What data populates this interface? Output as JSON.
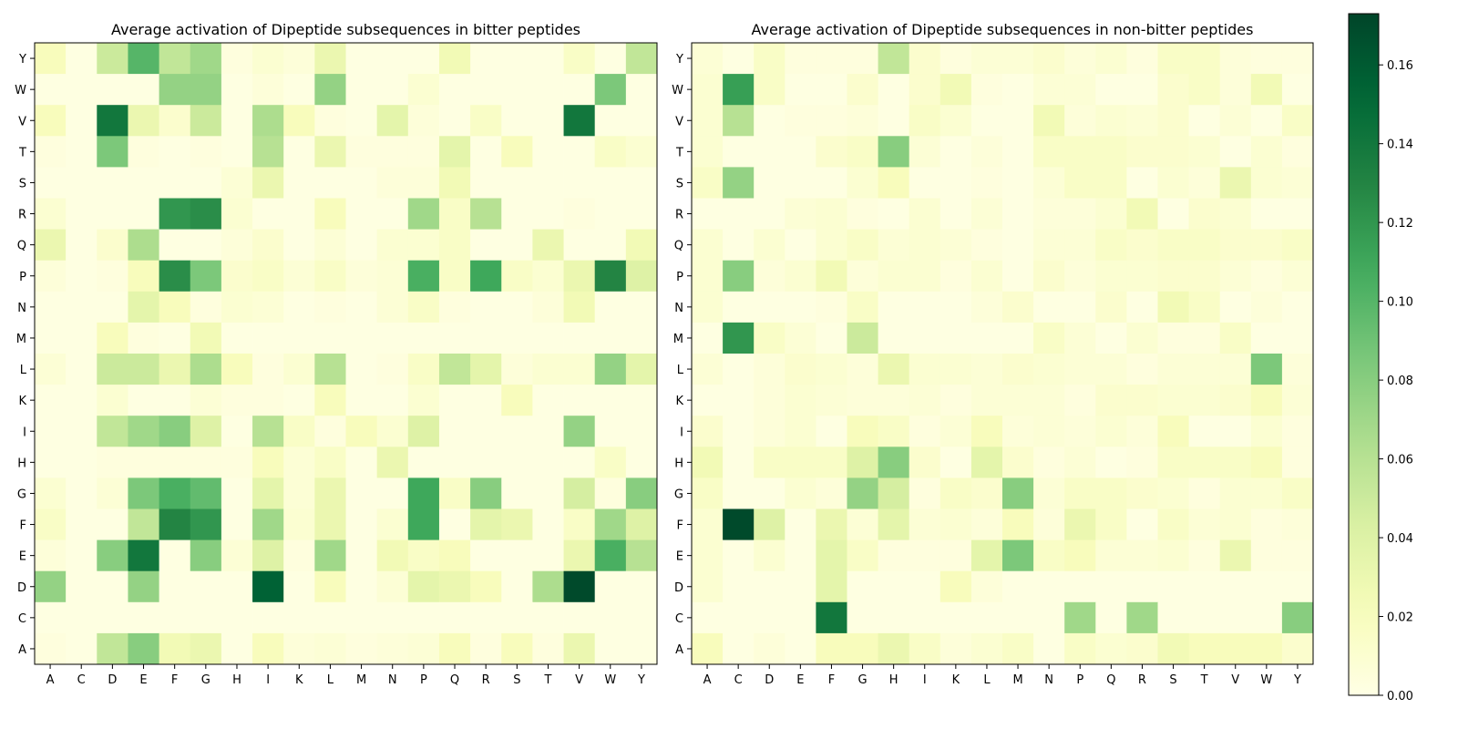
{
  "chart_data": [
    {
      "type": "heatmap",
      "title": "Average activation of Dipeptide subsequences in bitter peptides",
      "x_categories": [
        "A",
        "C",
        "D",
        "E",
        "F",
        "G",
        "H",
        "I",
        "K",
        "L",
        "M",
        "N",
        "P",
        "Q",
        "R",
        "S",
        "T",
        "V",
        "W",
        "Y"
      ],
      "y_categories": [
        "Y",
        "W",
        "V",
        "T",
        "S",
        "R",
        "Q",
        "P",
        "N",
        "M",
        "L",
        "K",
        "I",
        "H",
        "G",
        "F",
        "E",
        "D",
        "C",
        "A"
      ],
      "values": [
        [
          0.02,
          0.002,
          0.05,
          0.1,
          0.055,
          0.07,
          0.004,
          0.01,
          0.006,
          0.03,
          0.002,
          0.002,
          0.002,
          0.025,
          0.002,
          0.002,
          0.002,
          0.015,
          0.002,
          0.055
        ],
        [
          0.002,
          0.002,
          0.002,
          0.002,
          0.075,
          0.075,
          0.002,
          0.006,
          0.002,
          0.075,
          0.002,
          0.002,
          0.01,
          0.002,
          0.002,
          0.002,
          0.002,
          0.002,
          0.085,
          0.002
        ],
        [
          0.02,
          0.002,
          0.14,
          0.03,
          0.012,
          0.05,
          0.002,
          0.065,
          0.02,
          0.004,
          0.002,
          0.035,
          0.006,
          0.002,
          0.015,
          0.002,
          0.002,
          0.14,
          0.002,
          0.002
        ],
        [
          0.004,
          0.002,
          0.085,
          0.004,
          0.002,
          0.004,
          0.002,
          0.06,
          0.002,
          0.03,
          0.004,
          0.004,
          0.004,
          0.035,
          0.002,
          0.02,
          0.002,
          0.002,
          0.015,
          0.01
        ],
        [
          0.002,
          0.002,
          0.002,
          0.002,
          0.002,
          0.002,
          0.008,
          0.03,
          0.002,
          0.002,
          0.002,
          0.006,
          0.006,
          0.025,
          0.002,
          0.002,
          0.002,
          0.002,
          0.002,
          0.002
        ],
        [
          0.01,
          0.002,
          0.002,
          0.002,
          0.12,
          0.125,
          0.01,
          0.002,
          0.002,
          0.02,
          0.002,
          0.002,
          0.07,
          0.015,
          0.06,
          0.002,
          0.002,
          0.004,
          0.002,
          0.002
        ],
        [
          0.03,
          0.002,
          0.012,
          0.065,
          0.002,
          0.002,
          0.006,
          0.012,
          0.002,
          0.008,
          0.002,
          0.01,
          0.01,
          0.015,
          0.002,
          0.002,
          0.03,
          0.002,
          0.002,
          0.025
        ],
        [
          0.006,
          0.002,
          0.004,
          0.02,
          0.125,
          0.085,
          0.012,
          0.015,
          0.008,
          0.015,
          0.006,
          0.008,
          0.105,
          0.015,
          0.11,
          0.015,
          0.01,
          0.03,
          0.13,
          0.04
        ],
        [
          0.002,
          0.002,
          0.002,
          0.035,
          0.02,
          0.004,
          0.01,
          0.008,
          0.002,
          0.004,
          0.002,
          0.008,
          0.015,
          0.004,
          0.002,
          0.002,
          0.006,
          0.025,
          0.002,
          0.002
        ],
        [
          0.002,
          0.002,
          0.02,
          0.004,
          0.002,
          0.025,
          0.002,
          0.002,
          0.002,
          0.002,
          0.002,
          0.002,
          0.002,
          0.002,
          0.002,
          0.002,
          0.002,
          0.002,
          0.002,
          0.002
        ],
        [
          0.008,
          0.002,
          0.05,
          0.05,
          0.03,
          0.065,
          0.02,
          0.004,
          0.01,
          0.06,
          0.002,
          0.004,
          0.015,
          0.055,
          0.035,
          0.006,
          0.01,
          0.01,
          0.075,
          0.035
        ],
        [
          0.002,
          0.002,
          0.01,
          0.002,
          0.002,
          0.008,
          0.004,
          0.004,
          0.002,
          0.02,
          0.002,
          0.002,
          0.01,
          0.002,
          0.002,
          0.02,
          0.002,
          0.002,
          0.002,
          0.002
        ],
        [
          0.002,
          0.002,
          0.055,
          0.07,
          0.08,
          0.04,
          0.002,
          0.06,
          0.015,
          0.004,
          0.02,
          0.01,
          0.04,
          0.002,
          0.002,
          0.002,
          0.002,
          0.075,
          0.002,
          0.002
        ],
        [
          0.002,
          0.002,
          0.004,
          0.004,
          0.004,
          0.004,
          0.004,
          0.02,
          0.008,
          0.015,
          0.002,
          0.03,
          0.002,
          0.002,
          0.002,
          0.002,
          0.002,
          0.002,
          0.015,
          0.002
        ],
        [
          0.01,
          0.002,
          0.008,
          0.085,
          0.105,
          0.095,
          0.002,
          0.035,
          0.008,
          0.03,
          0.002,
          0.002,
          0.11,
          0.015,
          0.08,
          0.002,
          0.002,
          0.045,
          0.004,
          0.08
        ],
        [
          0.015,
          0.002,
          0.002,
          0.055,
          0.13,
          0.12,
          0.002,
          0.07,
          0.01,
          0.03,
          0.002,
          0.01,
          0.11,
          0.002,
          0.035,
          0.03,
          0.002,
          0.015,
          0.07,
          0.04
        ],
        [
          0.006,
          0.002,
          0.08,
          0.14,
          0.002,
          0.08,
          0.008,
          0.04,
          0.004,
          0.07,
          0.002,
          0.025,
          0.015,
          0.02,
          0.002,
          0.002,
          0.002,
          0.03,
          0.105,
          0.06
        ],
        [
          0.075,
          0.002,
          0.002,
          0.075,
          0.002,
          0.002,
          0.002,
          0.155,
          0.002,
          0.02,
          0.002,
          0.008,
          0.035,
          0.03,
          0.02,
          0.002,
          0.065,
          0.17,
          0.002,
          0.002
        ],
        [
          0.002,
          0.002,
          0.002,
          0.002,
          0.002,
          0.002,
          0.002,
          0.002,
          0.002,
          0.002,
          0.002,
          0.002,
          0.002,
          0.002,
          0.002,
          0.002,
          0.002,
          0.002,
          0.002,
          0.002
        ],
        [
          0.004,
          0.002,
          0.055,
          0.08,
          0.025,
          0.03,
          0.002,
          0.02,
          0.006,
          0.008,
          0.004,
          0.006,
          0.008,
          0.02,
          0.004,
          0.02,
          0.004,
          0.03,
          0.002,
          0.002
        ]
      ]
    },
    {
      "type": "heatmap",
      "title": "Average activation of Dipeptide subsequences in non-bitter peptides",
      "x_categories": [
        "A",
        "C",
        "D",
        "E",
        "F",
        "G",
        "H",
        "I",
        "K",
        "L",
        "M",
        "N",
        "P",
        "Q",
        "R",
        "S",
        "T",
        "V",
        "W",
        "Y"
      ],
      "y_categories": [
        "Y",
        "W",
        "V",
        "T",
        "S",
        "R",
        "Q",
        "P",
        "N",
        "M",
        "L",
        "K",
        "I",
        "H",
        "G",
        "F",
        "E",
        "D",
        "C",
        "A"
      ],
      "values": [
        [
          0.008,
          0.002,
          0.015,
          0.004,
          0.004,
          0.004,
          0.055,
          0.012,
          0.004,
          0.008,
          0.008,
          0.012,
          0.006,
          0.01,
          0.004,
          0.015,
          0.015,
          0.006,
          0.004,
          0.004
        ],
        [
          0.01,
          0.115,
          0.015,
          0.002,
          0.002,
          0.012,
          0.002,
          0.012,
          0.025,
          0.004,
          0.002,
          0.008,
          0.008,
          0.002,
          0.002,
          0.012,
          0.015,
          0.006,
          0.025,
          0.002
        ],
        [
          0.01,
          0.06,
          0.002,
          0.004,
          0.004,
          0.006,
          0.002,
          0.015,
          0.01,
          0.002,
          0.002,
          0.025,
          0.006,
          0.01,
          0.008,
          0.012,
          0.002,
          0.008,
          0.002,
          0.015
        ],
        [
          0.01,
          0.002,
          0.002,
          0.002,
          0.012,
          0.015,
          0.08,
          0.008,
          0.002,
          0.006,
          0.002,
          0.015,
          0.015,
          0.015,
          0.012,
          0.012,
          0.01,
          0.002,
          0.01,
          0.004
        ],
        [
          0.015,
          0.075,
          0.002,
          0.002,
          0.002,
          0.01,
          0.02,
          0.002,
          0.002,
          0.004,
          0.002,
          0.008,
          0.015,
          0.015,
          0.002,
          0.01,
          0.006,
          0.03,
          0.01,
          0.008
        ],
        [
          0.002,
          0.002,
          0.002,
          0.008,
          0.01,
          0.004,
          0.002,
          0.01,
          0.002,
          0.008,
          0.002,
          0.006,
          0.006,
          0.01,
          0.025,
          0.002,
          0.012,
          0.01,
          0.002,
          0.002
        ],
        [
          0.01,
          0.002,
          0.01,
          0.002,
          0.01,
          0.015,
          0.008,
          0.01,
          0.008,
          0.004,
          0.002,
          0.008,
          0.008,
          0.015,
          0.012,
          0.015,
          0.015,
          0.012,
          0.012,
          0.015
        ],
        [
          0.01,
          0.08,
          0.006,
          0.01,
          0.025,
          0.006,
          0.01,
          0.01,
          0.004,
          0.01,
          0.002,
          0.012,
          0.006,
          0.01,
          0.01,
          0.012,
          0.012,
          0.008,
          0.004,
          0.008
        ],
        [
          0.01,
          0.002,
          0.002,
          0.002,
          0.004,
          0.015,
          0.002,
          0.002,
          0.002,
          0.006,
          0.012,
          0.002,
          0.002,
          0.012,
          0.002,
          0.025,
          0.015,
          0.002,
          0.006,
          0.002
        ],
        [
          0.002,
          0.12,
          0.015,
          0.008,
          0.002,
          0.05,
          0.002,
          0.002,
          0.002,
          0.002,
          0.002,
          0.015,
          0.008,
          0.002,
          0.01,
          0.004,
          0.004,
          0.015,
          0.002,
          0.002
        ],
        [
          0.008,
          0.002,
          0.006,
          0.012,
          0.01,
          0.006,
          0.03,
          0.01,
          0.01,
          0.008,
          0.012,
          0.01,
          0.008,
          0.008,
          0.004,
          0.008,
          0.008,
          0.008,
          0.085,
          0.006
        ],
        [
          0.002,
          0.002,
          0.006,
          0.01,
          0.008,
          0.006,
          0.006,
          0.008,
          0.004,
          0.008,
          0.008,
          0.008,
          0.004,
          0.012,
          0.012,
          0.01,
          0.01,
          0.012,
          0.02,
          0.008
        ],
        [
          0.012,
          0.002,
          0.006,
          0.01,
          0.002,
          0.02,
          0.015,
          0.004,
          0.008,
          0.02,
          0.006,
          0.008,
          0.006,
          0.01,
          0.006,
          0.02,
          0.002,
          0.002,
          0.01,
          0.004
        ],
        [
          0.025,
          0.002,
          0.015,
          0.015,
          0.015,
          0.04,
          0.08,
          0.012,
          0.002,
          0.035,
          0.012,
          0.004,
          0.008,
          0.002,
          0.004,
          0.015,
          0.015,
          0.015,
          0.02,
          0.004
        ],
        [
          0.015,
          0.002,
          0.002,
          0.01,
          0.006,
          0.075,
          0.045,
          0.004,
          0.015,
          0.012,
          0.08,
          0.008,
          0.015,
          0.015,
          0.012,
          0.01,
          0.004,
          0.01,
          0.01,
          0.015
        ],
        [
          0.01,
          0.17,
          0.04,
          0.002,
          0.03,
          0.008,
          0.035,
          0.008,
          0.01,
          0.006,
          0.02,
          0.006,
          0.03,
          0.015,
          0.002,
          0.015,
          0.008,
          0.01,
          0.004,
          0.006
        ],
        [
          0.01,
          0.002,
          0.01,
          0.002,
          0.035,
          0.015,
          0.004,
          0.004,
          0.004,
          0.035,
          0.085,
          0.015,
          0.02,
          0.008,
          0.008,
          0.01,
          0.004,
          0.03,
          0.004,
          0.004
        ],
        [
          0.01,
          0.002,
          0.002,
          0.002,
          0.035,
          0.002,
          0.002,
          0.002,
          0.02,
          0.006,
          0.002,
          0.002,
          0.002,
          0.002,
          0.002,
          0.002,
          0.002,
          0.002,
          0.002,
          0.002
        ],
        [
          0.002,
          0.002,
          0.002,
          0.002,
          0.14,
          0.002,
          0.002,
          0.002,
          0.002,
          0.002,
          0.002,
          0.002,
          0.07,
          0.002,
          0.07,
          0.002,
          0.002,
          0.002,
          0.002,
          0.08
        ],
        [
          0.02,
          0.002,
          0.006,
          0.002,
          0.02,
          0.02,
          0.03,
          0.015,
          0.006,
          0.01,
          0.015,
          0.002,
          0.015,
          0.01,
          0.012,
          0.025,
          0.02,
          0.02,
          0.02,
          0.012
        ]
      ]
    }
  ],
  "colorbar": {
    "min": 0,
    "max": 0.173,
    "ticks": [
      "0.00",
      "0.02",
      "0.04",
      "0.06",
      "0.08",
      "0.10",
      "0.12",
      "0.14",
      "0.16"
    ],
    "colormap": "YlGn"
  }
}
